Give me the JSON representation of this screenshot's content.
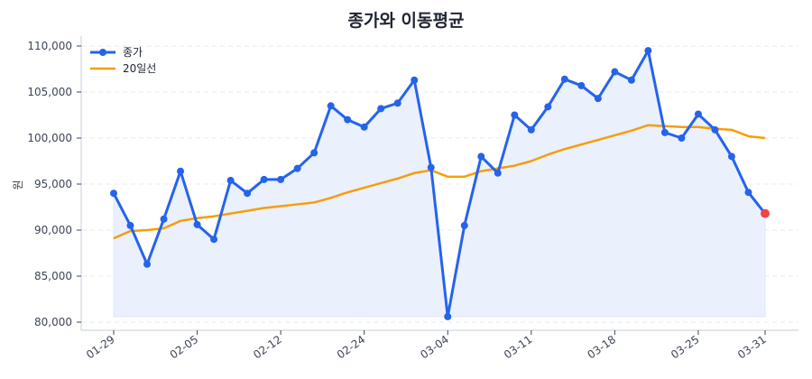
{
  "chart_data": {
    "type": "line",
    "title": "종가와 이동평균",
    "xlabel": "",
    "ylabel": "원",
    "ylim": [
      79500,
      110800
    ],
    "yticks": [
      80000,
      85000,
      90000,
      95000,
      100000,
      105000,
      110000
    ],
    "ytick_labels": [
      "80,000",
      "85,000",
      "90,000",
      "95,000",
      "100,000",
      "105,000",
      "110,000"
    ],
    "xtick_labels": [
      {
        "index": 0,
        "label": "01-29"
      },
      {
        "index": 5,
        "label": "02-05"
      },
      {
        "index": 10,
        "label": "02-12"
      },
      {
        "index": 15,
        "label": "02-24"
      },
      {
        "index": 20,
        "label": "03-04"
      },
      {
        "index": 25,
        "label": "03-11"
      },
      {
        "index": 30,
        "label": "03-18"
      },
      {
        "index": 35,
        "label": "03-25"
      },
      {
        "index": 39,
        "label": "03-31"
      }
    ],
    "grid": true,
    "legend_position": "upper left",
    "series": [
      {
        "name": "종가",
        "color": "#2563eb",
        "marker": "circle",
        "fill": "#eaf0fc",
        "last_point_color": "#ef4444",
        "values": [
          94000,
          90500,
          86300,
          91200,
          96400,
          90600,
          89000,
          95400,
          94000,
          95500,
          95500,
          96700,
          98400,
          103500,
          102000,
          101200,
          103200,
          103800,
          106300,
          96800,
          80600,
          90500,
          98000,
          96200,
          102500,
          100900,
          103400,
          106400,
          105700,
          104300,
          107200,
          106300,
          109500,
          100600,
          100000,
          102600,
          100900,
          98000,
          94100,
          91800
        ]
      },
      {
        "name": "20일선",
        "color": "#f59e0b",
        "marker": "none",
        "values": [
          89100,
          89900,
          90000,
          90200,
          91000,
          91300,
          91500,
          91800,
          92100,
          92400,
          92600,
          92800,
          93000,
          93500,
          94100,
          94600,
          95100,
          95600,
          96200,
          96500,
          95800,
          95800,
          96400,
          96700,
          97000,
          97500,
          98200,
          98800,
          99300,
          99800,
          100300,
          100800,
          101400,
          101300,
          101200,
          101200,
          101000,
          100900,
          100200,
          100000
        ]
      }
    ]
  },
  "legend": {
    "items": [
      {
        "label": "종가"
      },
      {
        "label": "20일선"
      }
    ]
  }
}
